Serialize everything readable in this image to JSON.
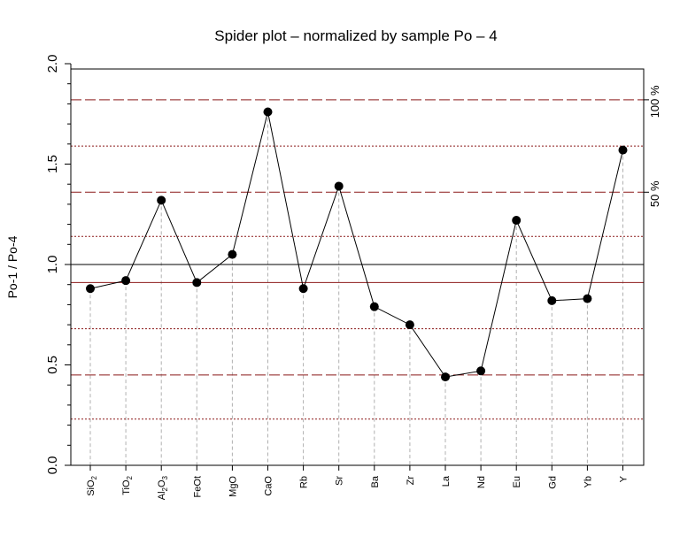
{
  "chart_data": {
    "type": "line",
    "title": "Spider plot –  normalized by sample Po – 4",
    "ylabel": "Po-1 / Po-4",
    "ylim": [
      0.0,
      2.0
    ],
    "yticks": [
      "0.0",
      "0.5",
      "1.0",
      "1.5",
      "2.0"
    ],
    "ytick_values": [
      0.0,
      0.5,
      1.0,
      1.5,
      2.0
    ],
    "categories": [
      {
        "base": "SiO",
        "sub": "2",
        "rest": ""
      },
      {
        "base": "TiO",
        "sub": "2",
        "rest": ""
      },
      {
        "base": "Al",
        "sub": "2",
        "rest": "O",
        "sub2": "3"
      },
      {
        "base": "FeOt",
        "sub": "",
        "rest": ""
      },
      {
        "base": "MgO",
        "sub": "",
        "rest": ""
      },
      {
        "base": "CaO",
        "sub": "",
        "rest": ""
      },
      {
        "base": "Rb",
        "sub": "",
        "rest": ""
      },
      {
        "base": "Sr",
        "sub": "",
        "rest": ""
      },
      {
        "base": "Ba",
        "sub": "",
        "rest": ""
      },
      {
        "base": "Zr",
        "sub": "",
        "rest": ""
      },
      {
        "base": "La",
        "sub": "",
        "rest": ""
      },
      {
        "base": "Nd",
        "sub": "",
        "rest": ""
      },
      {
        "base": "Eu",
        "sub": "",
        "rest": ""
      },
      {
        "base": "Gd",
        "sub": "",
        "rest": ""
      },
      {
        "base": "Yb",
        "sub": "",
        "rest": ""
      },
      {
        "base": "Y",
        "sub": "",
        "rest": ""
      }
    ],
    "values": [
      0.88,
      0.92,
      1.32,
      0.91,
      1.05,
      1.76,
      0.88,
      1.39,
      0.79,
      0.7,
      0.44,
      0.47,
      1.22,
      0.82,
      0.83,
      1.57
    ],
    "reference_lines": [
      {
        "y": 1.82,
        "style": "dashed",
        "color": "#8b1a1a"
      },
      {
        "y": 1.59,
        "style": "dotted",
        "color": "#8b1a1a"
      },
      {
        "y": 1.36,
        "style": "dashed",
        "color": "#8b1a1a"
      },
      {
        "y": 1.14,
        "style": "dotted",
        "color": "#8b1a1a"
      },
      {
        "y": 1.0,
        "style": "solid",
        "color": "#000000"
      },
      {
        "y": 0.91,
        "style": "solid",
        "color": "#8b1a1a"
      },
      {
        "y": 0.68,
        "style": "dotted",
        "color": "#8b1a1a"
      },
      {
        "y": 0.45,
        "style": "dashed",
        "color": "#8b1a1a"
      },
      {
        "y": 0.23,
        "style": "dotted",
        "color": "#8b1a1a"
      },
      {
        "y": 0.0,
        "style": "solid",
        "color": "#8b1a1a"
      }
    ],
    "right_labels": [
      {
        "text": "100 %",
        "y": 1.82
      },
      {
        "text": "50 %",
        "y": 1.36
      }
    ],
    "colors": {
      "line": "#000000",
      "point": "#000000",
      "guide": "#b0b0b0",
      "reference": "#8b1a1a"
    },
    "grid": false
  }
}
